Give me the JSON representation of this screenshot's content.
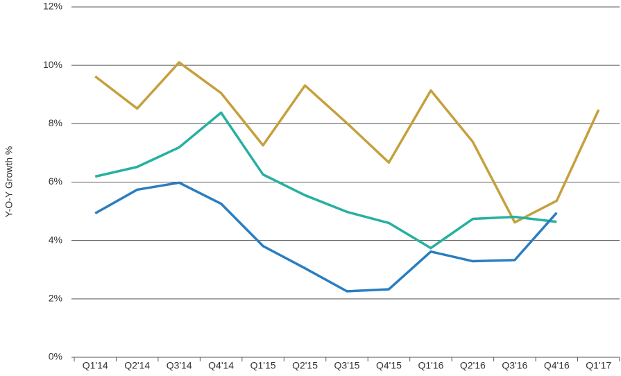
{
  "chart_data": {
    "type": "line",
    "y_label": "Y-O-Y Growth %",
    "categories": [
      "Q1'14",
      "Q2'14",
      "Q3'14",
      "Q4'14",
      "Q1'15",
      "Q2'15",
      "Q3'15",
      "Q4'15",
      "Q1'16",
      "Q2'16",
      "Q3'16",
      "Q4'16",
      "Q1'17"
    ],
    "series": [
      {
        "color": "#c5a03c",
        "values": [
          9.62,
          8.52,
          10.1,
          9.05,
          7.26,
          9.31,
          8.02,
          6.67,
          9.14,
          7.38,
          4.62,
          5.36,
          8.48
        ]
      },
      {
        "color": "#26b1a0",
        "values": [
          6.19,
          6.52,
          7.19,
          8.38,
          6.26,
          5.55,
          4.98,
          4.6,
          3.74,
          4.74,
          4.81,
          4.64,
          null
        ]
      },
      {
        "color": "#2a7dc0",
        "values": [
          4.93,
          5.74,
          5.98,
          5.26,
          3.81,
          3.05,
          2.26,
          2.33,
          3.62,
          3.29,
          3.33,
          4.95,
          null
        ]
      }
    ],
    "ylim": [
      0,
      12
    ],
    "yticks": [
      {
        "value": 0,
        "label": "0%"
      },
      {
        "value": 2,
        "label": "2%"
      },
      {
        "value": 4,
        "label": "4%"
      },
      {
        "value": 6,
        "label": "6%"
      },
      {
        "value": 8,
        "label": "8%"
      },
      {
        "value": 10,
        "label": "10%"
      },
      {
        "value": 12,
        "label": "12%"
      }
    ],
    "grid": true
  }
}
